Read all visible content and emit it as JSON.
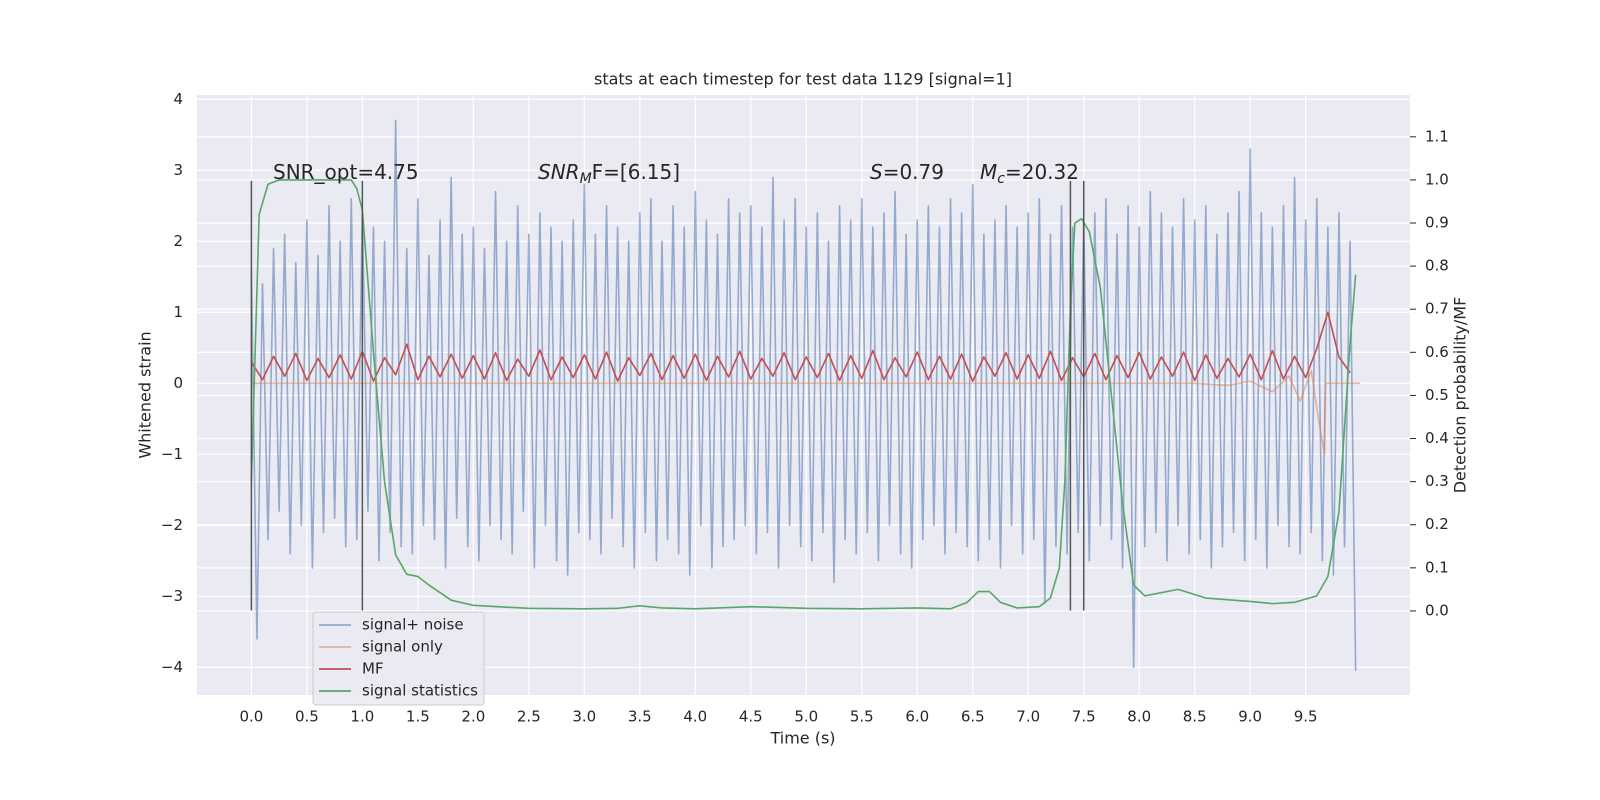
{
  "chart_data": {
    "type": "line",
    "title": "stats at each timestep for test data 1129 [signal=1]",
    "xlabel": "Time (s)",
    "ylabel": "Whitened strain",
    "y2label": "Detection probability/MF",
    "xlim": [
      -0.49,
      10.44
    ],
    "ylim": [
      -4.39,
      4.06
    ],
    "y2lim": [
      -0.195,
      1.197
    ],
    "xticks": [
      {
        "value": 0,
        "label": "0.0"
      },
      {
        "value": 0.5,
        "label": "0.5"
      },
      {
        "value": 1,
        "label": "1.0"
      },
      {
        "value": 1.5,
        "label": "1.5"
      },
      {
        "value": 2,
        "label": "2.0"
      },
      {
        "value": 2.5,
        "label": "2.5"
      },
      {
        "value": 3,
        "label": "3.0"
      },
      {
        "value": 3.5,
        "label": "3.5"
      },
      {
        "value": 4,
        "label": "4.0"
      },
      {
        "value": 4.5,
        "label": "4.5"
      },
      {
        "value": 5,
        "label": "5.0"
      },
      {
        "value": 5.5,
        "label": "5.5"
      },
      {
        "value": 6,
        "label": "6.0"
      },
      {
        "value": 6.5,
        "label": "6.5"
      },
      {
        "value": 7,
        "label": "7.0"
      },
      {
        "value": 7.5,
        "label": "7.5"
      },
      {
        "value": 8,
        "label": "8.0"
      },
      {
        "value": 8.5,
        "label": "8.5"
      },
      {
        "value": 9,
        "label": "9.0"
      },
      {
        "value": 9.5,
        "label": "9.5"
      }
    ],
    "yticks": [
      {
        "value": -4,
        "label": "−4"
      },
      {
        "value": -3,
        "label": "−3"
      },
      {
        "value": -2,
        "label": "−2"
      },
      {
        "value": -1,
        "label": "−1"
      },
      0,
      1,
      2,
      3,
      4
    ],
    "y2ticks": [
      {
        "value": 0,
        "label": "0.0"
      },
      {
        "value": 0.1,
        "label": "0.1"
      },
      {
        "value": 0.2,
        "label": "0.2"
      },
      {
        "value": 0.3,
        "label": "0.3"
      },
      {
        "value": 0.4,
        "label": "0.4"
      },
      {
        "value": 0.5,
        "label": "0.5"
      },
      {
        "value": 0.6,
        "label": "0.6"
      },
      {
        "value": 0.7,
        "label": "0.7"
      },
      {
        "value": 0.8,
        "label": "0.8"
      },
      {
        "value": 0.9,
        "label": "0.9"
      },
      {
        "value": 1,
        "label": "1.0"
      },
      {
        "value": 1.1,
        "label": "1.1"
      }
    ],
    "grid": true,
    "legend": "lower left",
    "series": [
      {
        "name": "signal+ noise",
        "color": "#4c72b0",
        "x": [
          0,
          0.05,
          0.1,
          0.15,
          0.2,
          0.25,
          0.3,
          0.35,
          0.4,
          0.45,
          0.5,
          0.55,
          0.6,
          0.65,
          0.7,
          0.75,
          0.8,
          0.85,
          0.9,
          0.95,
          1,
          1.05,
          1.1,
          1.15,
          1.2,
          1.25,
          1.3,
          1.35,
          1.4,
          1.45,
          1.5,
          1.55,
          1.6,
          1.65,
          1.7,
          1.75,
          1.8,
          1.85,
          1.9,
          1.95,
          2,
          2.05,
          2.1,
          2.15,
          2.2,
          2.25,
          2.3,
          2.35,
          2.4,
          2.45,
          2.5,
          2.55,
          2.6,
          2.65,
          2.7,
          2.75,
          2.8,
          2.85,
          2.9,
          2.95,
          3,
          3.05,
          3.1,
          3.15,
          3.2,
          3.25,
          3.3,
          3.35,
          3.4,
          3.45,
          3.5,
          3.55,
          3.6,
          3.65,
          3.7,
          3.75,
          3.8,
          3.85,
          3.9,
          3.95,
          4,
          4.05,
          4.1,
          4.15,
          4.2,
          4.25,
          4.3,
          4.35,
          4.4,
          4.45,
          4.5,
          4.55,
          4.6,
          4.65,
          4.7,
          4.75,
          4.8,
          4.85,
          4.9,
          4.95,
          5,
          5.05,
          5.1,
          5.15,
          5.2,
          5.25,
          5.3,
          5.35,
          5.4,
          5.45,
          5.5,
          5.55,
          5.6,
          5.65,
          5.7,
          5.75,
          5.8,
          5.85,
          5.9,
          5.95,
          6,
          6.05,
          6.1,
          6.15,
          6.2,
          6.25,
          6.3,
          6.35,
          6.4,
          6.45,
          6.5,
          6.55,
          6.6,
          6.65,
          6.7,
          6.75,
          6.8,
          6.85,
          6.9,
          6.95,
          7,
          7.05,
          7.1,
          7.15,
          7.2,
          7.25,
          7.3,
          7.35,
          7.4,
          7.45,
          7.5,
          7.55,
          7.6,
          7.65,
          7.7,
          7.75,
          7.8,
          7.85,
          7.9,
          7.95,
          8,
          8.05,
          8.1,
          8.15,
          8.2,
          8.25,
          8.3,
          8.35,
          8.4,
          8.45,
          8.5,
          8.55,
          8.6,
          8.65,
          8.7,
          8.75,
          8.8,
          8.85,
          8.9,
          8.95,
          9,
          9.05,
          9.1,
          9.15,
          9.2,
          9.25,
          9.3,
          9.35,
          9.4,
          9.45,
          9.5,
          9.55,
          9.6,
          9.65,
          9.7,
          9.75,
          9.8,
          9.85,
          9.9,
          9.95
        ],
        "values": [
          1.6,
          -3.6,
          1.4,
          -2.2,
          1.9,
          -1.8,
          2.1,
          -2.4,
          1.7,
          -2.0,
          2.3,
          -2.6,
          1.8,
          -2.1,
          2.5,
          -1.9,
          2.0,
          -2.3,
          2.6,
          -2.2,
          2.4,
          -1.8,
          2.2,
          -2.5,
          2.0,
          -2.1,
          3.7,
          -2.3,
          1.9,
          -2.4,
          2.6,
          -2.0,
          1.8,
          -2.2,
          2.3,
          -2.6,
          2.9,
          -1.9,
          2.1,
          -2.3,
          2.2,
          -2.5,
          1.9,
          -2.0,
          2.7,
          -2.2,
          2.0,
          -2.4,
          2.5,
          -1.8,
          2.1,
          -2.6,
          2.4,
          -2.0,
          2.2,
          -2.5,
          2.0,
          -2.7,
          2.3,
          -2.1,
          2.8,
          -2.2,
          2.1,
          -2.4,
          2.5,
          -1.9,
          2.2,
          -2.3,
          2.0,
          -2.6,
          2.4,
          -2.1,
          2.6,
          -2.5,
          2.0,
          -2.2,
          2.5,
          -2.4,
          2.2,
          -2.7,
          2.7,
          -2.0,
          2.3,
          -2.6,
          2.1,
          -2.3,
          2.6,
          -2.2,
          2.4,
          -2.0,
          2.5,
          -2.4,
          2.2,
          -2.1,
          2.9,
          -2.6,
          2.3,
          -2.0,
          2.6,
          -2.3,
          2.2,
          -2.5,
          2.4,
          -2.1,
          2.0,
          -2.8,
          2.5,
          -2.2,
          2.3,
          -2.4,
          2.6,
          -2.1,
          2.2,
          -2.5,
          2.4,
          -2.0,
          2.7,
          -2.4,
          2.1,
          -2.6,
          2.3,
          -2.2,
          2.5,
          -2.0,
          2.2,
          -2.4,
          2.6,
          -2.1,
          2.4,
          -2.3,
          2.8,
          -2.5,
          2.1,
          -2.2,
          2.3,
          -2.6,
          2.5,
          -2.0,
          2.2,
          -2.4,
          2.4,
          -2.2,
          2.6,
          -3.1,
          2.1,
          -2.3,
          2.5,
          -2.4,
          2.2,
          -2.1,
          2.3,
          -2.5,
          2.4,
          -2.0,
          2.6,
          -2.2,
          2.1,
          -2.6,
          2.5,
          -4.0,
          2.2,
          -2.3,
          2.7,
          -2.1,
          2.4,
          -2.5,
          2.2,
          -2.0,
          2.6,
          -2.4,
          2.3,
          -2.2,
          2.5,
          -2.6,
          2.1,
          -2.3,
          2.4,
          -2.1,
          2.7,
          -2.5,
          3.3,
          -2.2,
          2.4,
          -2.6,
          2.2,
          -2.0,
          2.5,
          -2.3,
          2.9,
          -2.4,
          2.3,
          -2.1,
          2.6,
          -2.5,
          2.2,
          -2.7,
          2.4,
          -2.3,
          2.0,
          -4.05
        ]
      },
      {
        "name": "signal only",
        "color": "#dd8452",
        "x": [
          0,
          8.5,
          8.8,
          9.0,
          9.2,
          9.35,
          9.45,
          9.55,
          9.62,
          9.67,
          9.68,
          9.99
        ],
        "values": [
          0,
          0,
          -0.03,
          0.03,
          -0.12,
          0.1,
          -0.25,
          0.18,
          -0.55,
          -1.0,
          0,
          0
        ]
      },
      {
        "name": "MF",
        "color": "#c44e52",
        "x": [
          0,
          0.1,
          0.2,
          0.3,
          0.4,
          0.5,
          0.6,
          0.7,
          0.8,
          0.9,
          1,
          1.1,
          1.2,
          1.3,
          1.4,
          1.5,
          1.6,
          1.7,
          1.8,
          1.9,
          2,
          2.1,
          2.2,
          2.3,
          2.4,
          2.5,
          2.6,
          2.7,
          2.8,
          2.9,
          3,
          3.1,
          3.2,
          3.3,
          3.4,
          3.5,
          3.6,
          3.7,
          3.8,
          3.9,
          4,
          4.1,
          4.2,
          4.3,
          4.4,
          4.5,
          4.6,
          4.7,
          4.8,
          4.9,
          5,
          5.1,
          5.2,
          5.3,
          5.4,
          5.5,
          5.6,
          5.7,
          5.8,
          5.9,
          6,
          6.1,
          6.2,
          6.3,
          6.4,
          6.5,
          6.6,
          6.7,
          6.8,
          6.9,
          7,
          7.1,
          7.2,
          7.3,
          7.4,
          7.5,
          7.6,
          7.7,
          7.8,
          7.9,
          8,
          8.1,
          8.2,
          8.3,
          8.4,
          8.5,
          8.6,
          8.7,
          8.8,
          8.9,
          9,
          9.1,
          9.2,
          9.3,
          9.4,
          9.5,
          9.6,
          9.7,
          9.8,
          9.9
        ],
        "values": [
          0.3,
          0.05,
          0.38,
          0.1,
          0.42,
          0.04,
          0.35,
          0.08,
          0.4,
          0.06,
          0.45,
          0.03,
          0.36,
          0.12,
          0.55,
          0.05,
          0.38,
          0.09,
          0.41,
          0.07,
          0.39,
          0.06,
          0.43,
          0.04,
          0.34,
          0.1,
          0.47,
          0.05,
          0.37,
          0.08,
          0.4,
          0.06,
          0.44,
          0.03,
          0.36,
          0.11,
          0.42,
          0.05,
          0.39,
          0.07,
          0.41,
          0.04,
          0.38,
          0.09,
          0.45,
          0.06,
          0.35,
          0.1,
          0.43,
          0.05,
          0.37,
          0.08,
          0.42,
          0.04,
          0.39,
          0.07,
          0.46,
          0.05,
          0.36,
          0.09,
          0.44,
          0.05,
          0.38,
          0.06,
          0.41,
          0.03,
          0.37,
          0.1,
          0.43,
          0.06,
          0.4,
          0.07,
          0.45,
          0.04,
          0.36,
          0.09,
          0.42,
          0.05,
          0.39,
          0.08,
          0.43,
          0.06,
          0.37,
          0.1,
          0.44,
          0.04,
          0.4,
          0.07,
          0.35,
          0.09,
          0.41,
          0.05,
          0.46,
          0.06,
          0.38,
          0.08,
          0.49,
          1.0,
          0.37,
          0.15
        ]
      },
      {
        "name": "signal statistics",
        "color": "#55a868",
        "axis": "y2",
        "x": [
          0,
          0.07,
          0.15,
          0.25,
          0.9,
          0.95,
          1.0,
          1.1,
          1.2,
          1.3,
          1.4,
          1.5,
          1.6,
          1.8,
          2.0,
          2.5,
          3.0,
          3.3,
          3.5,
          3.7,
          4.0,
          4.5,
          5.0,
          5.5,
          6.0,
          6.3,
          6.45,
          6.55,
          6.65,
          6.75,
          6.9,
          7.1,
          7.2,
          7.28,
          7.33,
          7.38,
          7.42,
          7.48,
          7.55,
          7.65,
          7.75,
          7.85,
          7.95,
          8.05,
          8.15,
          8.35,
          8.6,
          9.0,
          9.2,
          9.4,
          9.6,
          9.7,
          9.8,
          9.9,
          9.95
        ],
        "values": [
          0.3,
          0.92,
          0.99,
          1.0,
          1.0,
          0.98,
          0.93,
          0.6,
          0.3,
          0.13,
          0.085,
          0.08,
          0.06,
          0.025,
          0.013,
          0.006,
          0.005,
          0.006,
          0.012,
          0.007,
          0.005,
          0.01,
          0.006,
          0.005,
          0.007,
          0.005,
          0.02,
          0.045,
          0.045,
          0.02,
          0.007,
          0.01,
          0.03,
          0.1,
          0.3,
          0.7,
          0.9,
          0.91,
          0.88,
          0.75,
          0.5,
          0.25,
          0.06,
          0.035,
          0.04,
          0.05,
          0.03,
          0.022,
          0.017,
          0.02,
          0.035,
          0.08,
          0.23,
          0.62,
          0.78
        ]
      }
    ],
    "vlines": [
      {
        "x": 0,
        "ymin": -3.2,
        "ymax": 2.85
      },
      {
        "x": 1.0,
        "ymin": -3.2,
        "ymax": 2.85
      },
      {
        "x": 7.38,
        "ymin": -3.2,
        "ymax": 2.85
      },
      {
        "x": 7.5,
        "ymin": -3.2,
        "ymax": 2.85
      }
    ],
    "annotations": [
      {
        "text": "SNR_opt=4.75"
      },
      {
        "text": "SNR",
        "sub": "M",
        "tail": "F=[6.15]"
      },
      {
        "text": "S",
        "tail": "=0.79"
      },
      {
        "text": "M",
        "sub": "c",
        "tail": "=20.32"
      }
    ]
  }
}
